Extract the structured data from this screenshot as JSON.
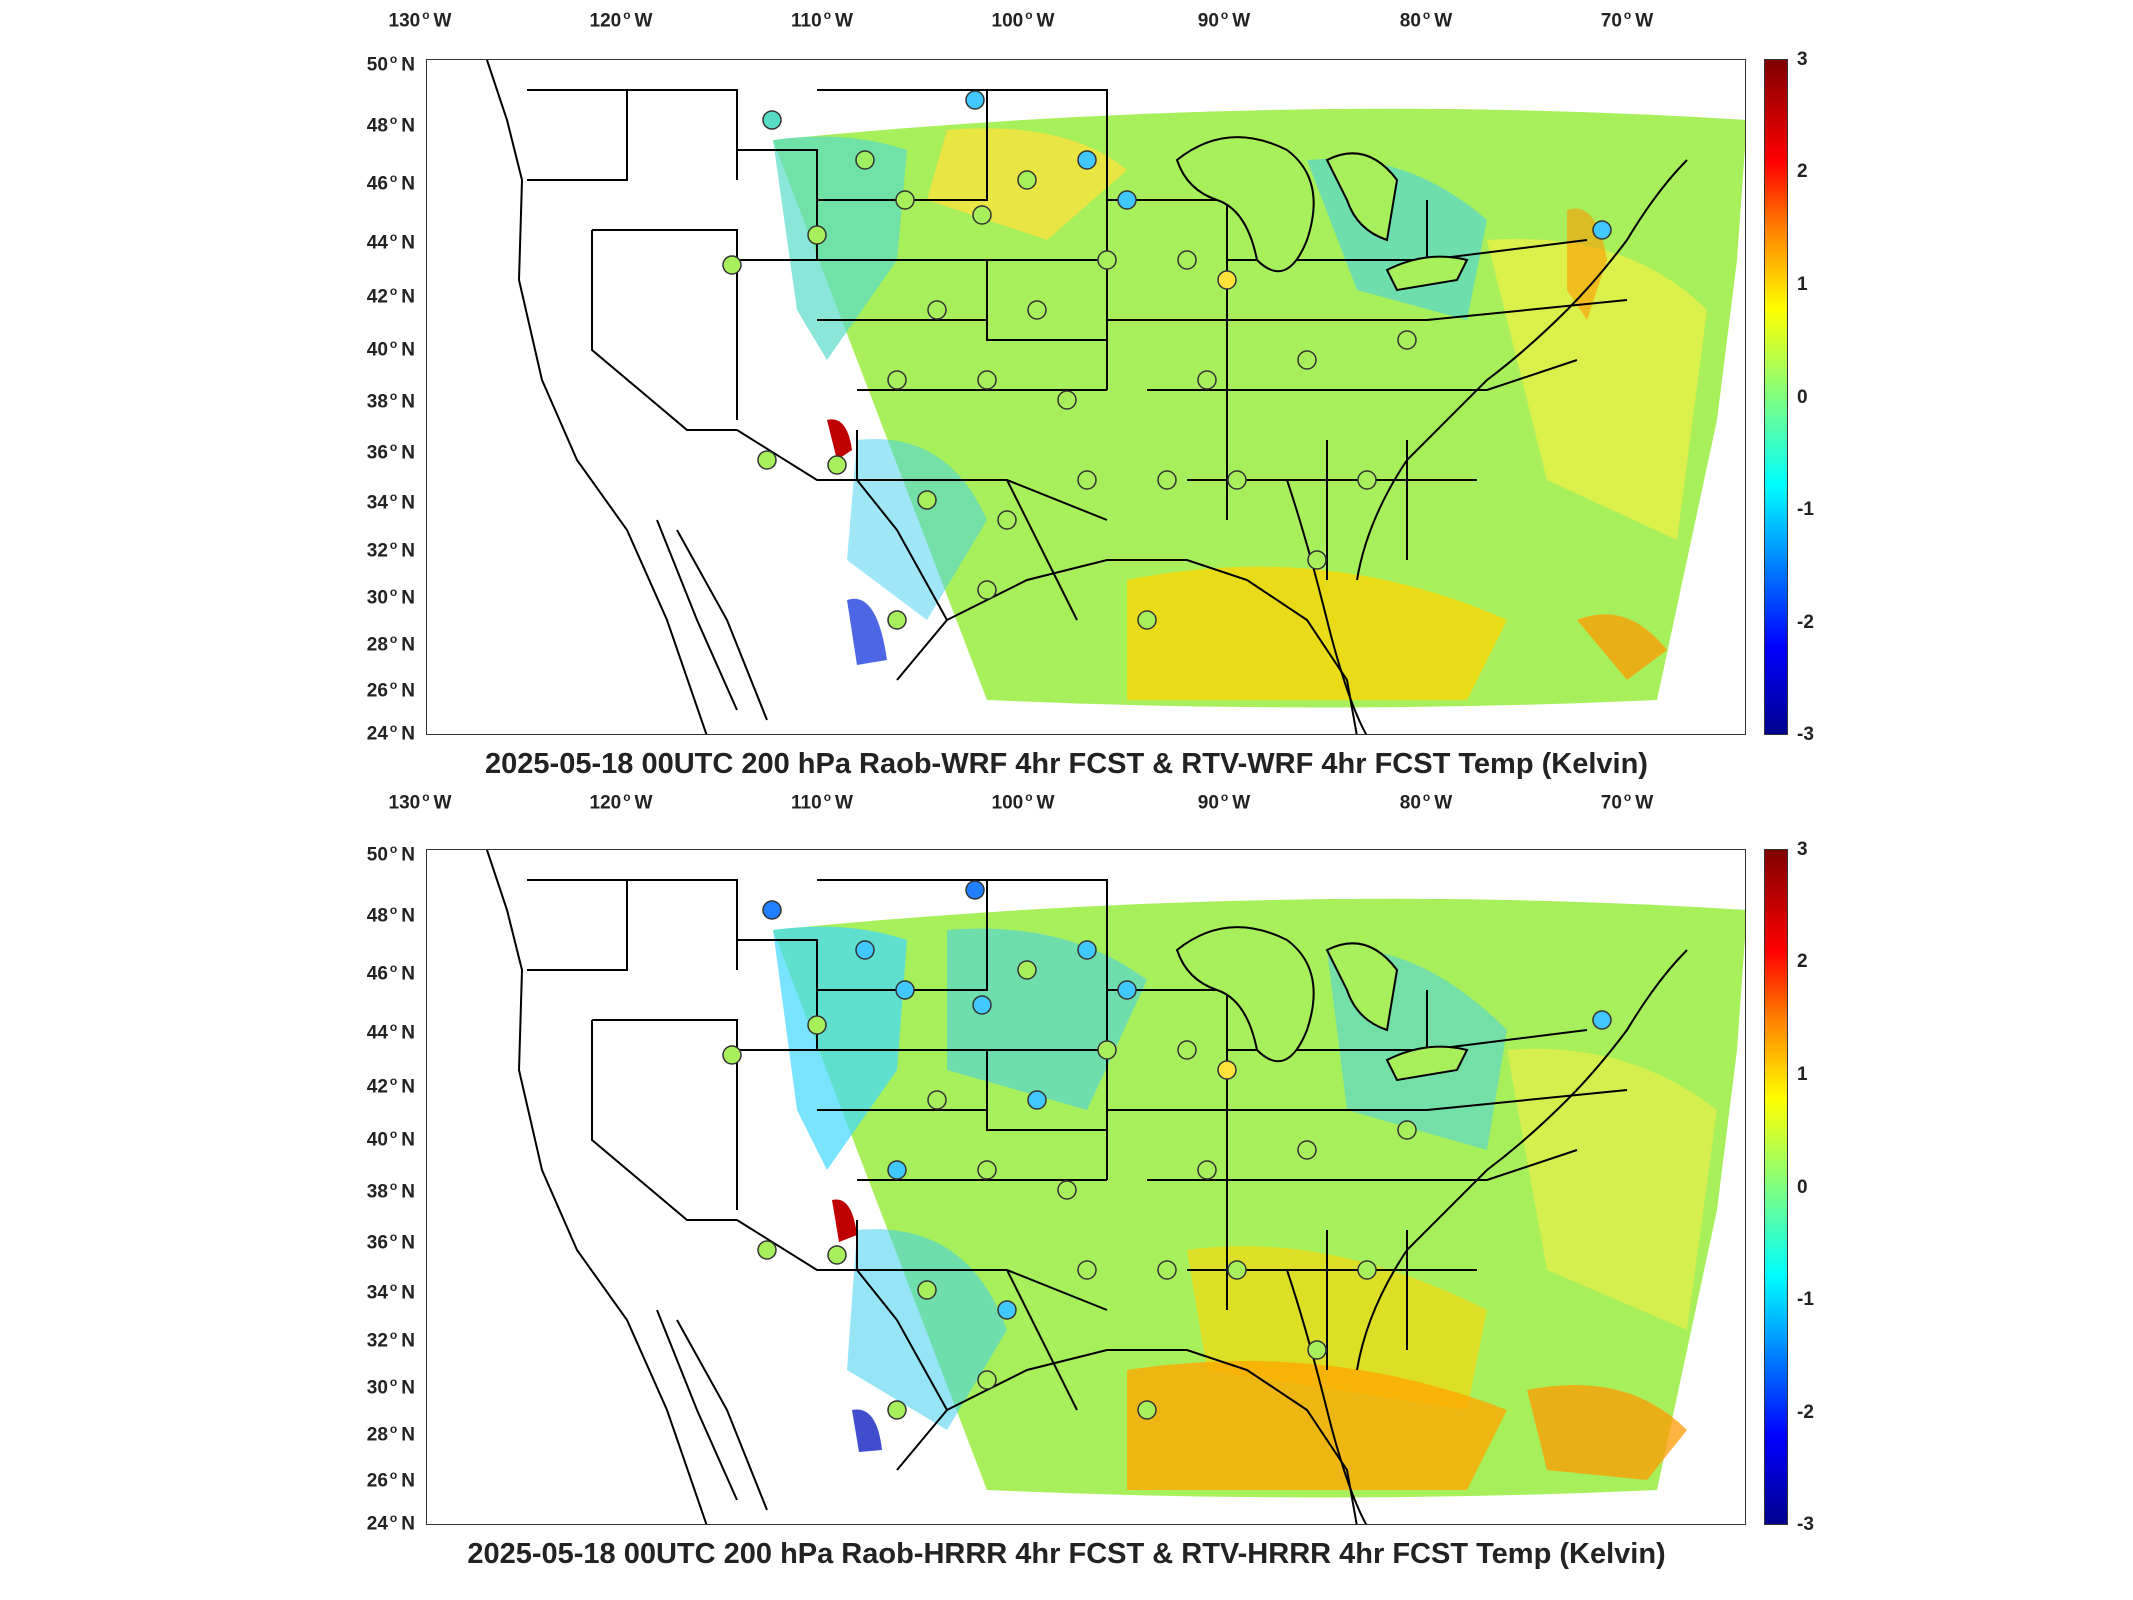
{
  "lon_ticks": [
    "130",
    "120",
    "110",
    "100",
    "90",
    "80",
    "70"
  ],
  "lon_suffix": "W",
  "lat_ticks": [
    "50",
    "48",
    "46",
    "44",
    "42",
    "40",
    "38",
    "36",
    "34",
    "32",
    "30",
    "28",
    "26",
    "24"
  ],
  "lat_suffix": "N",
  "colorbar_ticks": [
    "3",
    "2",
    "1",
    "0",
    "-1",
    "-2",
    "-3"
  ],
  "colors": {
    "field_base": "#9ff060",
    "cool": "#40d8ff",
    "warm": "#ffd400",
    "hot": "#ff8000",
    "extreme": "#c00000",
    "cold_extreme": "#1020c0",
    "border": "#000000"
  },
  "panels": [
    {
      "title": "2025-05-18 00UTC 200 hPa Raob-WRF 4hr FCST & RTV-WRF 4hr FCST Temp (Kelvin)"
    },
    {
      "title": "2025-05-18 00UTC 200 hPa Raob-HRRR 4hr FCST & RTV-HRRR 4hr FCST Temp (Kelvin)"
    }
  ]
}
